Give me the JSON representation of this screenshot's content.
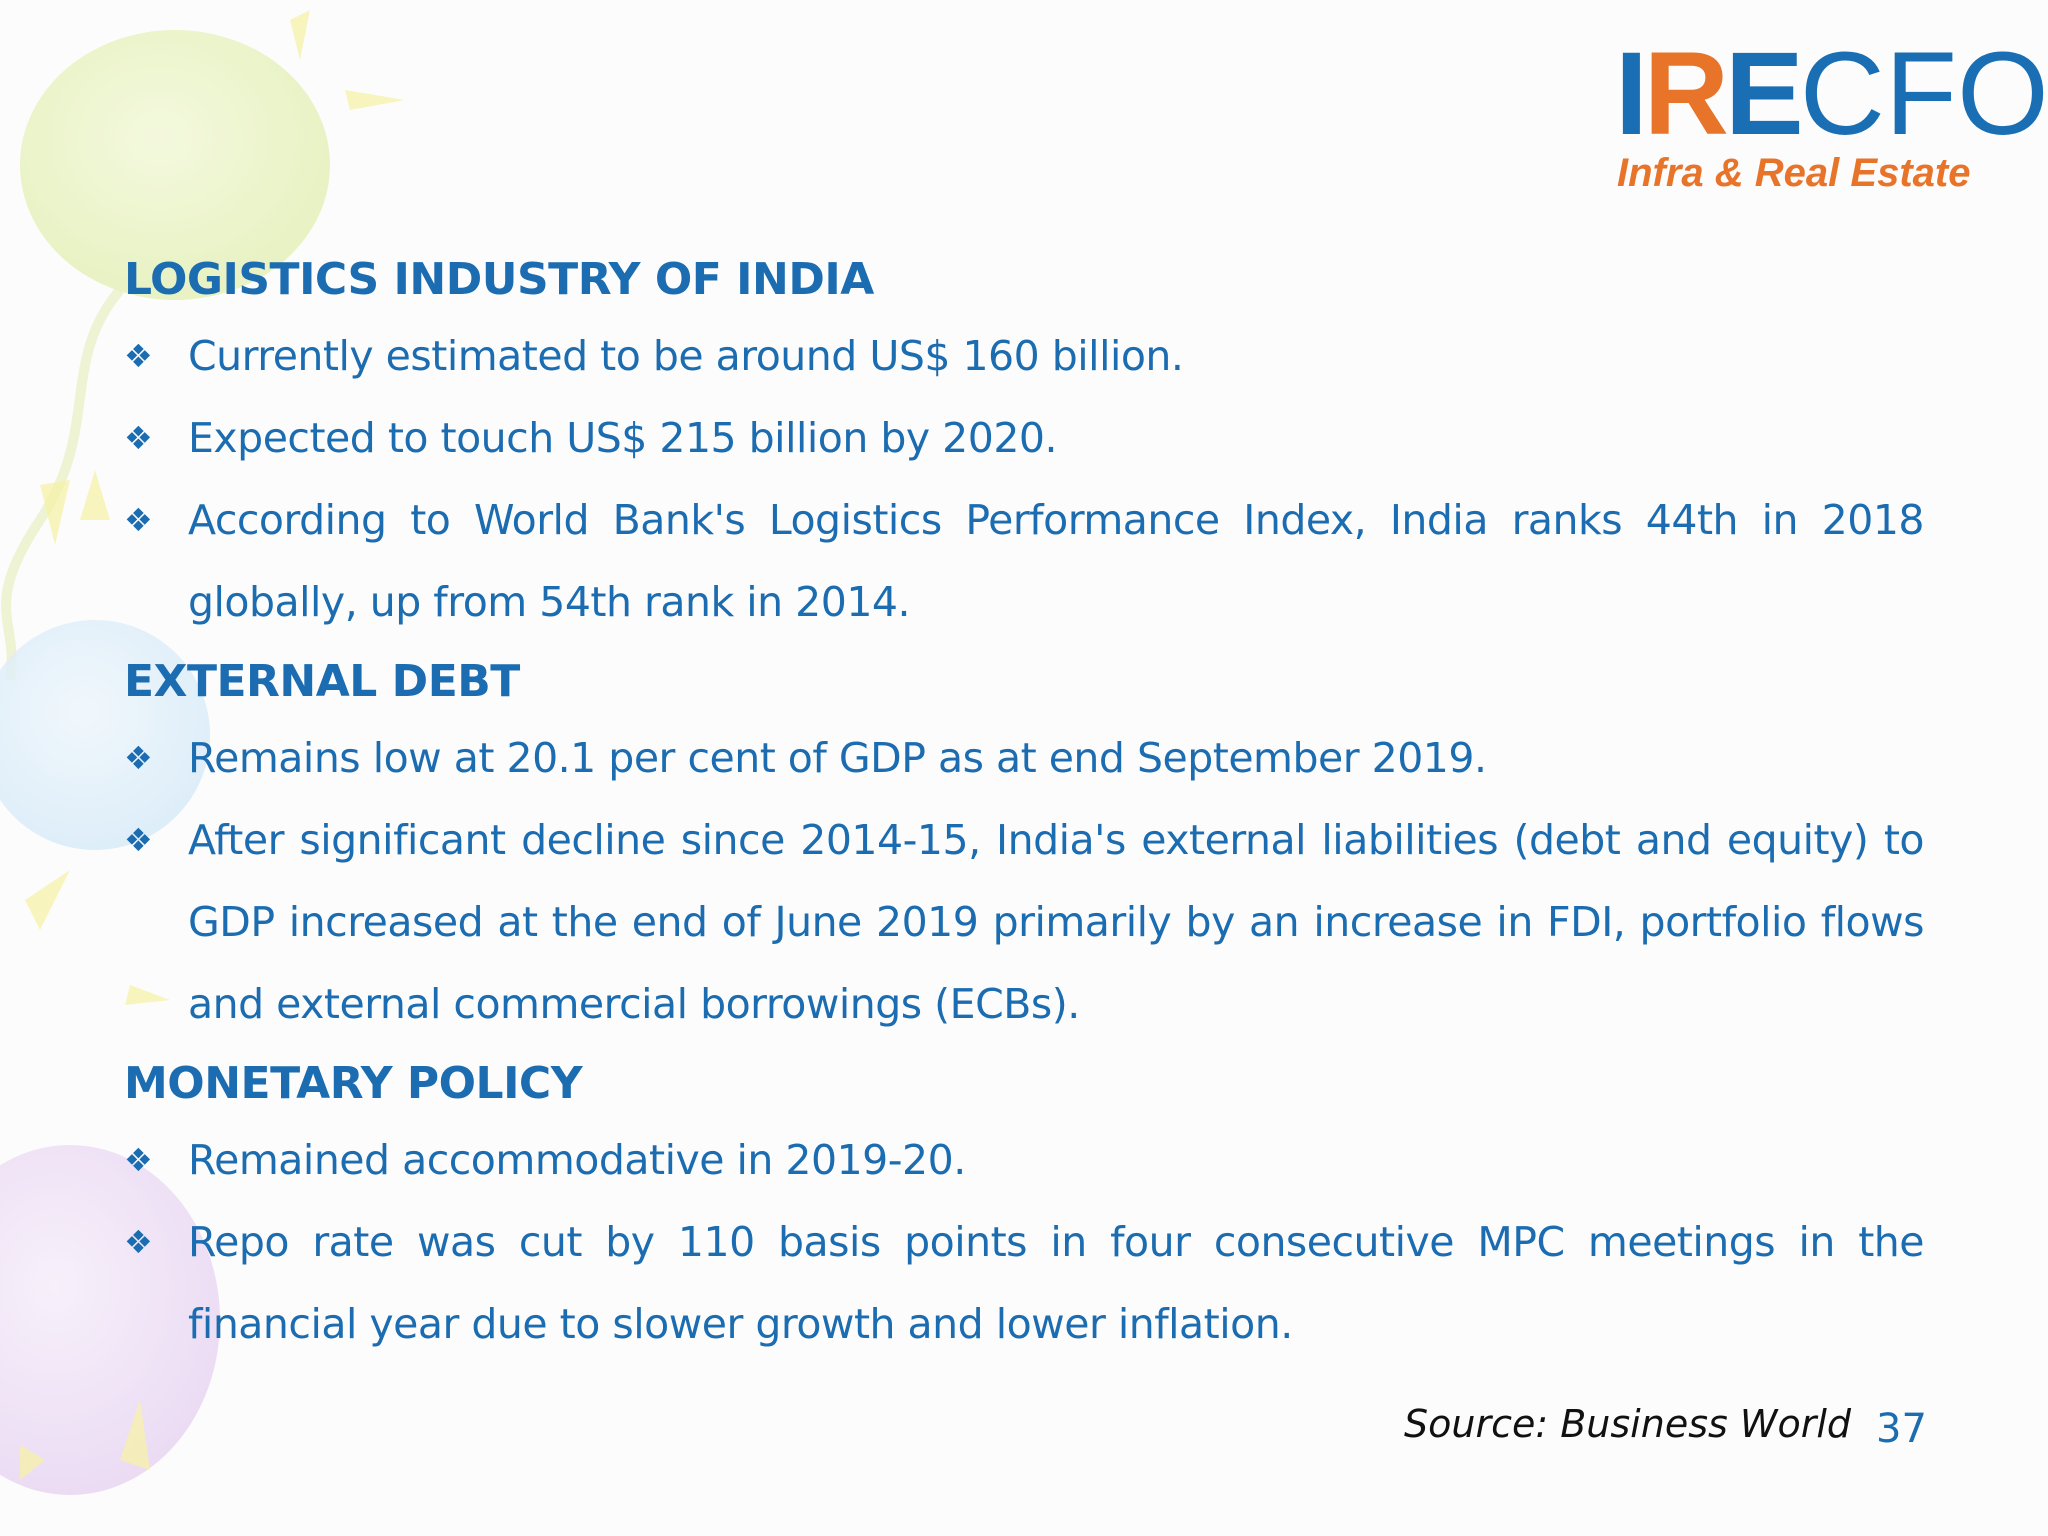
{
  "logo": {
    "ire_i": "I",
    "ire_r": "R",
    "ire_e": "E",
    "cfo": "CFO",
    "tagline": "Infra & Real Estate"
  },
  "sections": [
    {
      "heading": "LOGISTICS INDUSTRY OF INDIA",
      "bullets": [
        "Currently estimated to be around US$ 160 billion.",
        "Expected to touch US$ 215 billion by 2020.",
        "According to World Bank's Logistics Performance Index, India ranks 44th in 2018 globally, up from 54th rank in 2014."
      ]
    },
    {
      "heading": "EXTERNAL DEBT",
      "bullets": [
        "Remains low at 20.1 per cent of GDP as at end September 2019.",
        "After significant decline since 2014-15, India's external liabilities (debt and equity) to GDP increased at the end of June 2019 primarily by an increase in FDI, portfolio flows and external commercial borrowings (ECBs)."
      ]
    },
    {
      "heading": "MONETARY POLICY",
      "bullets": [
        "Remained accommodative in 2019-20.",
        "Repo rate was cut by 110 basis points in four consecutive MPC meetings in the financial year due to slower growth and lower inflation."
      ]
    }
  ],
  "bullet_glyph": "❖",
  "footer": {
    "source": "Source: Business World",
    "page_number": "37"
  },
  "colors": {
    "text_blue": "#1b6cb0",
    "logo_blue": "#1a6fb4",
    "logo_orange": "#e8742a"
  }
}
